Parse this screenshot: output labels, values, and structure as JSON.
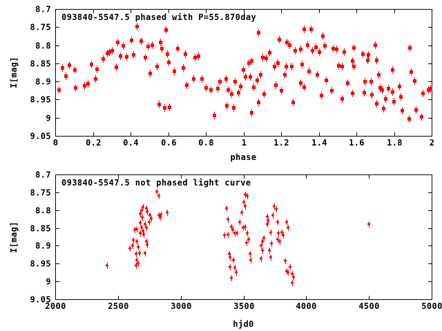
{
  "page": {
    "background": "#ffffff",
    "text_color": "#000000"
  },
  "chart_data": [
    {
      "type": "scatter",
      "name": "phased-light-curve",
      "title": "093840-5547.5 phased with P=55.870day",
      "xlabel": "phase",
      "ylabel": "I[mag]",
      "xlim": [
        0,
        2
      ],
      "ylim": [
        8.7,
        9.05
      ],
      "y_axis_reversed": true,
      "grid": false,
      "legend": "none",
      "title_position": "inside-top-left",
      "axis_color": "#000000",
      "marker": "square-errorbar",
      "marker_color": "#ff0000",
      "xticks": [
        0,
        0.2,
        0.4,
        0.6,
        0.8,
        1,
        1.2,
        1.4,
        1.6,
        1.8,
        2
      ],
      "xtick_labels": [
        "0",
        "0.2",
        "0.4",
        "0.6",
        "0.8",
        "1",
        "1.2",
        "1.4",
        "1.6",
        "1.8",
        "2"
      ],
      "yticks": [
        8.7,
        8.75,
        8.8,
        8.85,
        8.9,
        8.95,
        9,
        9.05
      ],
      "ytick_labels": [
        "8.7",
        "8.75",
        "8.8",
        "8.85",
        "8.9",
        "8.95",
        "9",
        "9.05"
      ],
      "points": [
        [
          0.018,
          8.922
        ],
        [
          0.035,
          8.862
        ],
        [
          0.055,
          8.885
        ],
        [
          0.073,
          8.855
        ],
        [
          0.103,
          8.868
        ],
        [
          0.105,
          8.916
        ],
        [
          0.155,
          8.912
        ],
        [
          0.171,
          8.905
        ],
        [
          0.19,
          8.852
        ],
        [
          0.214,
          8.893
        ],
        [
          0.22,
          8.866
        ],
        [
          0.255,
          8.837
        ],
        [
          0.275,
          8.822
        ],
        [
          0.288,
          8.817
        ],
        [
          0.3,
          8.815
        ],
        [
          0.323,
          8.859
        ],
        [
          0.33,
          8.792
        ],
        [
          0.345,
          8.83
        ],
        [
          0.36,
          8.8
        ],
        [
          0.377,
          8.832
        ],
        [
          0.405,
          8.786
        ],
        [
          0.416,
          8.825
        ],
        [
          0.434,
          8.747
        ],
        [
          0.455,
          8.787
        ],
        [
          0.477,
          8.833
        ],
        [
          0.49,
          8.803
        ],
        [
          0.502,
          8.877
        ],
        [
          0.515,
          8.798
        ],
        [
          0.538,
          8.858
        ],
        [
          0.55,
          8.963
        ],
        [
          0.557,
          8.792
        ],
        [
          0.565,
          8.808
        ],
        [
          0.578,
          8.972
        ],
        [
          0.587,
          8.757
        ],
        [
          0.593,
          8.823
        ],
        [
          0.6,
          8.846
        ],
        [
          0.605,
          8.97
        ],
        [
          0.63,
          8.871
        ],
        [
          0.648,
          8.808
        ],
        [
          0.679,
          8.862
        ],
        [
          0.691,
          8.823
        ],
        [
          0.697,
          8.909
        ],
        [
          0.734,
          8.893
        ],
        [
          0.74,
          8.833
        ],
        [
          0.758,
          8.83
        ],
        [
          0.777,
          8.892
        ],
        [
          0.801,
          8.916
        ],
        [
          0.826,
          8.922
        ],
        [
          0.844,
          8.992
        ],
        [
          0.862,
          8.919
        ],
        [
          0.874,
          8.9
        ],
        [
          0.905,
          8.893
        ],
        [
          0.911,
          8.966
        ],
        [
          0.917,
          8.922
        ],
        [
          0.936,
          8.934
        ],
        [
          0.948,
          8.972
        ],
        [
          0.954,
          8.9
        ],
        [
          0.972,
          8.931
        ],
        [
          0.985,
          8.913
        ],
        [
          0.998,
          8.868
        ],
        [
          1.01,
          8.887
        ],
        [
          1.029,
          8.849
        ],
        [
          1.035,
          8.887
        ],
        [
          1.041,
          8.843
        ],
        [
          1.041,
          8.985
        ],
        [
          1.053,
          8.915
        ],
        [
          1.072,
          8.896
        ],
        [
          1.078,
          8.765
        ],
        [
          1.078,
          8.957
        ],
        [
          1.09,
          8.881
        ],
        [
          1.102,
          8.833
        ],
        [
          1.108,
          8.934
        ],
        [
          1.12,
          8.836
        ],
        [
          1.139,
          8.82
        ],
        [
          1.163,
          8.858
        ],
        [
          1.17,
          8.909
        ],
        [
          1.182,
          8.849
        ],
        [
          1.188,
          8.784
        ],
        [
          1.2,
          8.925
        ],
        [
          1.218,
          8.881
        ],
        [
          1.225,
          8.858
        ],
        [
          1.231,
          8.791
        ],
        [
          1.243,
          8.798
        ],
        [
          1.255,
          8.858
        ],
        [
          1.261,
          8.957
        ],
        [
          1.273,
          8.814
        ],
        [
          1.304,
          8.811
        ],
        [
          1.304,
          8.903
        ],
        [
          1.31,
          8.852
        ],
        [
          1.322,
          8.756
        ],
        [
          1.322,
          8.915
        ],
        [
          1.341,
          8.798
        ],
        [
          1.347,
          8.871
        ],
        [
          1.359,
          8.756
        ],
        [
          1.365,
          8.814
        ],
        [
          1.383,
          8.804
        ],
        [
          1.39,
          8.881
        ],
        [
          1.402,
          8.817
        ],
        [
          1.413,
          8.938
        ],
        [
          1.42,
          8.775
        ],
        [
          1.432,
          8.801
        ],
        [
          1.439,
          8.896
        ],
        [
          1.469,
          8.924
        ],
        [
          1.475,
          8.808
        ],
        [
          1.494,
          8.811
        ],
        [
          1.505,
          8.856
        ],
        [
          1.523,
          8.858
        ],
        [
          1.523,
          8.948
        ],
        [
          1.535,
          8.817
        ],
        [
          1.553,
          8.903
        ],
        [
          1.578,
          8.842
        ],
        [
          1.578,
          8.932
        ],
        [
          1.584,
          8.807
        ],
        [
          1.584,
          8.858
        ],
        [
          1.633,
          8.824
        ],
        [
          1.639,
          8.931
        ],
        [
          1.645,
          8.9
        ],
        [
          1.658,
          8.84
        ],
        [
          1.664,
          8.826
        ],
        [
          1.676,
          8.899
        ],
        [
          1.682,
          8.935
        ],
        [
          1.7,
          8.798
        ],
        [
          1.706,
          8.84
        ],
        [
          1.706,
          8.961
        ],
        [
          1.718,
          8.881
        ],
        [
          1.725,
          8.916
        ],
        [
          1.737,
          8.922
        ],
        [
          1.743,
          8.974
        ],
        [
          1.755,
          8.948
        ],
        [
          1.768,
          8.919
        ],
        [
          1.792,
          8.868
        ],
        [
          1.792,
          8.929
        ],
        [
          1.798,
          8.954
        ],
        [
          1.829,
          8.913
        ],
        [
          1.835,
          8.942
        ],
        [
          1.841,
          8.98
        ],
        [
          1.878,
          9.003
        ],
        [
          1.884,
          8.807
        ],
        [
          1.89,
          8.874
        ],
        [
          1.908,
          8.897
        ],
        [
          1.914,
          8.977
        ],
        [
          1.945,
          8.996
        ],
        [
          1.951,
          8.932
        ],
        [
          1.982,
          8.922
        ],
        [
          1.994,
          8.919
        ]
      ]
    },
    {
      "type": "scatter",
      "name": "unphased-light-curve",
      "title": "093840-5547.5 not phased light curve",
      "xlabel": "hjd0",
      "ylabel": "I[mag]",
      "xlim": [
        2000,
        5000
      ],
      "ylim": [
        8.7,
        9.05
      ],
      "y_axis_reversed": true,
      "grid": false,
      "legend": "none",
      "title_position": "inside-top-left",
      "axis_color": "#000000",
      "marker": "diamond-errorbar",
      "marker_color": "#ff0000",
      "xticks": [
        2000,
        2500,
        3000,
        3500,
        4000,
        4500,
        5000
      ],
      "xtick_labels": [
        "2000",
        "2500",
        "3000",
        "3500",
        "4000",
        "4500",
        "5000"
      ],
      "yticks": [
        8.7,
        8.75,
        8.8,
        8.85,
        8.9,
        8.95,
        9,
        9.05
      ],
      "ytick_labels": [
        "8.7",
        "8.75",
        "8.8",
        "8.85",
        "8.9",
        "8.95",
        "9",
        "9.05"
      ],
      "points": [
        [
          2413,
          8.955
        ],
        [
          2596,
          8.907
        ],
        [
          2615,
          8.9
        ],
        [
          2624,
          8.884
        ],
        [
          2633,
          8.855
        ],
        [
          2642,
          8.923
        ],
        [
          2642,
          8.955
        ],
        [
          2651,
          8.852
        ],
        [
          2651,
          8.888
        ],
        [
          2651,
          8.939
        ],
        [
          2660,
          8.904
        ],
        [
          2660,
          8.949
        ],
        [
          2669,
          8.92
        ],
        [
          2679,
          8.81
        ],
        [
          2679,
          8.836
        ],
        [
          2679,
          8.865
        ],
        [
          2688,
          8.801
        ],
        [
          2688,
          8.849
        ],
        [
          2694,
          8.82
        ],
        [
          2697,
          8.791
        ],
        [
          2697,
          8.859
        ],
        [
          2706,
          8.868
        ],
        [
          2716,
          8.839
        ],
        [
          2716,
          8.92
        ],
        [
          2725,
          8.794
        ],
        [
          2725,
          8.849
        ],
        [
          2725,
          8.888
        ],
        [
          2734,
          8.804
        ],
        [
          2734,
          8.897
        ],
        [
          2749,
          8.833
        ],
        [
          2756,
          8.814
        ],
        [
          2767,
          8.823
        ],
        [
          2807,
          8.749
        ],
        [
          2826,
          8.759
        ],
        [
          2826,
          8.814
        ],
        [
          2835,
          8.82
        ],
        [
          2842,
          8.813
        ],
        [
          2890,
          8.807
        ],
        [
          3348,
          8.871
        ],
        [
          3367,
          8.794
        ],
        [
          3376,
          8.826
        ],
        [
          3376,
          8.868
        ],
        [
          3385,
          8.923
        ],
        [
          3394,
          8.933
        ],
        [
          3394,
          8.959
        ],
        [
          3404,
          8.846
        ],
        [
          3404,
          8.991
        ],
        [
          3413,
          8.855
        ],
        [
          3422,
          8.939
        ],
        [
          3431,
          8.865
        ],
        [
          3431,
          8.962
        ],
        [
          3440,
          8.975
        ],
        [
          3450,
          8.865
        ],
        [
          3468,
          8.833
        ],
        [
          3486,
          8.807
        ],
        [
          3495,
          8.849
        ],
        [
          3504,
          8.778
        ],
        [
          3514,
          8.756
        ],
        [
          3514,
          8.788
        ],
        [
          3514,
          8.846
        ],
        [
          3523,
          8.891
        ],
        [
          3532,
          8.759
        ],
        [
          3532,
          8.865
        ],
        [
          3541,
          8.881
        ],
        [
          3550,
          8.923
        ],
        [
          3560,
          8.939
        ],
        [
          3642,
          8.9
        ],
        [
          3642,
          8.936
        ],
        [
          3651,
          8.888
        ],
        [
          3651,
          8.913
        ],
        [
          3660,
          8.878
        ],
        [
          3688,
          8.817
        ],
        [
          3688,
          8.839
        ],
        [
          3697,
          8.83
        ],
        [
          3706,
          8.913
        ],
        [
          3716,
          8.862
        ],
        [
          3716,
          8.933
        ],
        [
          3725,
          8.894
        ],
        [
          3734,
          8.814
        ],
        [
          3743,
          8.788
        ],
        [
          3761,
          8.797
        ],
        [
          3770,
          8.833
        ],
        [
          3770,
          8.881
        ],
        [
          3780,
          8.865
        ],
        [
          3789,
          8.888
        ],
        [
          3807,
          8.862
        ],
        [
          3816,
          8.871
        ],
        [
          3835,
          8.942
        ],
        [
          3844,
          8.833
        ],
        [
          3844,
          8.971
        ],
        [
          3853,
          8.849
        ],
        [
          3853,
          8.975
        ],
        [
          3872,
          8.959
        ],
        [
          3890,
          8.978
        ],
        [
          3890,
          9.004
        ],
        [
          3899,
          8.988
        ],
        [
          4500,
          8.84
        ]
      ]
    }
  ]
}
